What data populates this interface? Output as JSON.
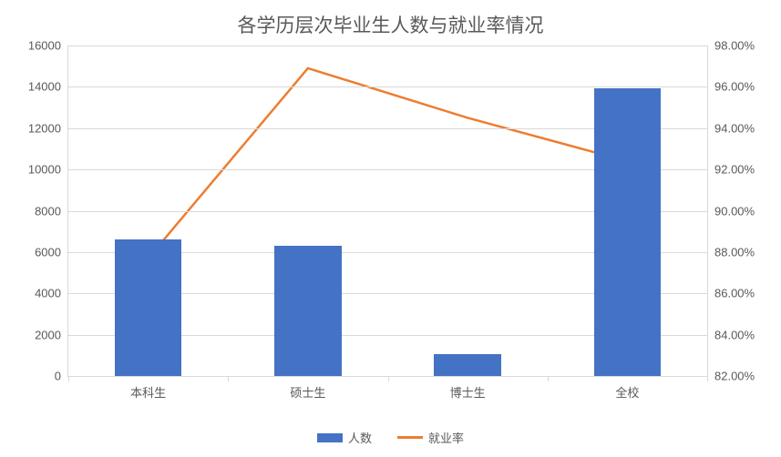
{
  "chart": {
    "type": "bar+line",
    "title": "各学历层次毕业生人数与就业率情况",
    "title_fontsize": 21,
    "title_color": "#595959",
    "background_color": "#ffffff",
    "grid_color": "#d9d9d9",
    "axis_label_color": "#595959",
    "axis_label_fontsize": 13,
    "categories": [
      "本科生",
      "硕士生",
      "博士生",
      "全校"
    ],
    "bars": {
      "label": "人数",
      "color": "#4472c4",
      "values": [
        6600,
        6300,
        1050,
        13950
      ],
      "bar_width_fraction": 0.42
    },
    "line": {
      "label": "就业率",
      "color": "#ed7d31",
      "line_width": 2.5,
      "values": [
        87.7,
        96.9,
        94.5,
        92.4
      ]
    },
    "y_left": {
      "min": 0,
      "max": 16000,
      "step": 2000
    },
    "y_right": {
      "min": 82.0,
      "max": 98.0,
      "step": 2.0,
      "format": "percent2"
    },
    "legend_position": "bottom"
  }
}
